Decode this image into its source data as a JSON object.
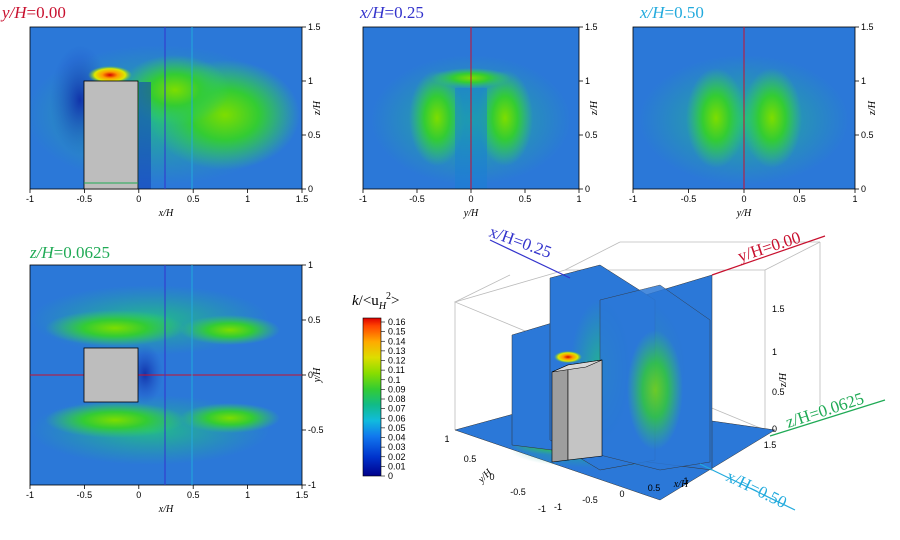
{
  "colors": {
    "red": "#c8102e",
    "blue": "#3333cc",
    "cyan": "#22aadd",
    "green": "#1faa55",
    "block": "#bdbdbd"
  },
  "colorbar": {
    "label_var": "k",
    "label_rest": "/<u",
    "label_sub": "H",
    "label_sup": "2",
    "label_end": ">",
    "ticks": [
      "0.16",
      "0.15",
      "0.14",
      "0.13",
      "0.12",
      "0.11",
      "0.1",
      "0.09",
      "0.08",
      "0.07",
      "0.06",
      "0.05",
      "0.04",
      "0.03",
      "0.02",
      "0.01",
      "0"
    ]
  },
  "chart_data": [
    {
      "type": "heatmap",
      "title_var": "y/H",
      "title_val": "=0.00",
      "xlabel": "x/H",
      "ylabel": "z/H",
      "xlim": [
        -1,
        1.5
      ],
      "ylim": [
        0,
        1.5
      ],
      "xticks": [
        "-1",
        "-0.5",
        "0",
        "0.5",
        "1",
        "1.5"
      ],
      "yticks": [
        "0",
        "0.5",
        "1",
        "1.5"
      ],
      "block": {
        "x": [
          -0.5,
          0
        ],
        "z": [
          0,
          1
        ]
      },
      "section_lines": [
        {
          "x": 0.25,
          "name": "x/H=0.25"
        },
        {
          "x": 0.5,
          "name": "x/H=0.50"
        }
      ],
      "peak": {
        "x": -0.3,
        "z": 1.05,
        "value": 0.16
      }
    },
    {
      "type": "heatmap",
      "title_var": "x/H",
      "title_val": "=0.25",
      "xlabel": "y/H",
      "ylabel": "z/H",
      "xlim": [
        -1,
        1
      ],
      "ylim": [
        0,
        1.5
      ],
      "xticks": [
        "-1",
        "-0.5",
        "0",
        "0.5",
        "1"
      ],
      "yticks": [
        "0",
        "0.5",
        "1",
        "1.5"
      ],
      "section_lines": [
        {
          "y": 0,
          "name": "y/H=0.00"
        }
      ]
    },
    {
      "type": "heatmap",
      "title_var": "x/H",
      "title_val": "=0.50",
      "xlabel": "y/H",
      "ylabel": "z/H",
      "xlim": [
        -1,
        1
      ],
      "ylim": [
        0,
        1.5
      ],
      "xticks": [
        "-1",
        "-0.5",
        "0",
        "0.5",
        "1"
      ],
      "yticks": [
        "0",
        "0.5",
        "1",
        "1.5"
      ],
      "section_lines": [
        {
          "y": 0,
          "name": "y/H=0.00"
        }
      ]
    },
    {
      "type": "heatmap",
      "title_var": "z/H",
      "title_val": "=0.0625",
      "xlabel": "x/H",
      "ylabel": "y/H",
      "xlim": [
        -1,
        1.5
      ],
      "ylim": [
        -1,
        1
      ],
      "xticks": [
        "-1",
        "-0.5",
        "0",
        "0.5",
        "1",
        "1.5"
      ],
      "yticks": [
        "-1",
        "-0.5",
        "0",
        "0.5",
        "1"
      ],
      "block": {
        "x": [
          -0.5,
          0
        ],
        "y": [
          -0.25,
          0.25
        ]
      },
      "section_lines": [
        {
          "x": 0.25,
          "name": "x/H=0.25"
        },
        {
          "x": 0.5,
          "name": "x/H=0.50"
        },
        {
          "y": 0,
          "name": "y/H=0.00"
        }
      ]
    },
    {
      "type": "3d-slices",
      "labels": {
        "x25": "x/H=0.25",
        "y00": "y/H=0.00",
        "z0625": "z/H=0.0625",
        "x50": "x/H=0.50"
      },
      "xlabel": "x/H",
      "ylabel": "y/H",
      "zlabel": "z/H",
      "xticks": [
        "-1",
        "-0.5",
        "0",
        "0.5",
        "1",
        "1.5"
      ],
      "yticks": [
        "1",
        "0.5",
        "0",
        "-0.5",
        "-1"
      ],
      "zticks": [
        "0",
        "0.5",
        "1",
        "1.5"
      ]
    }
  ]
}
